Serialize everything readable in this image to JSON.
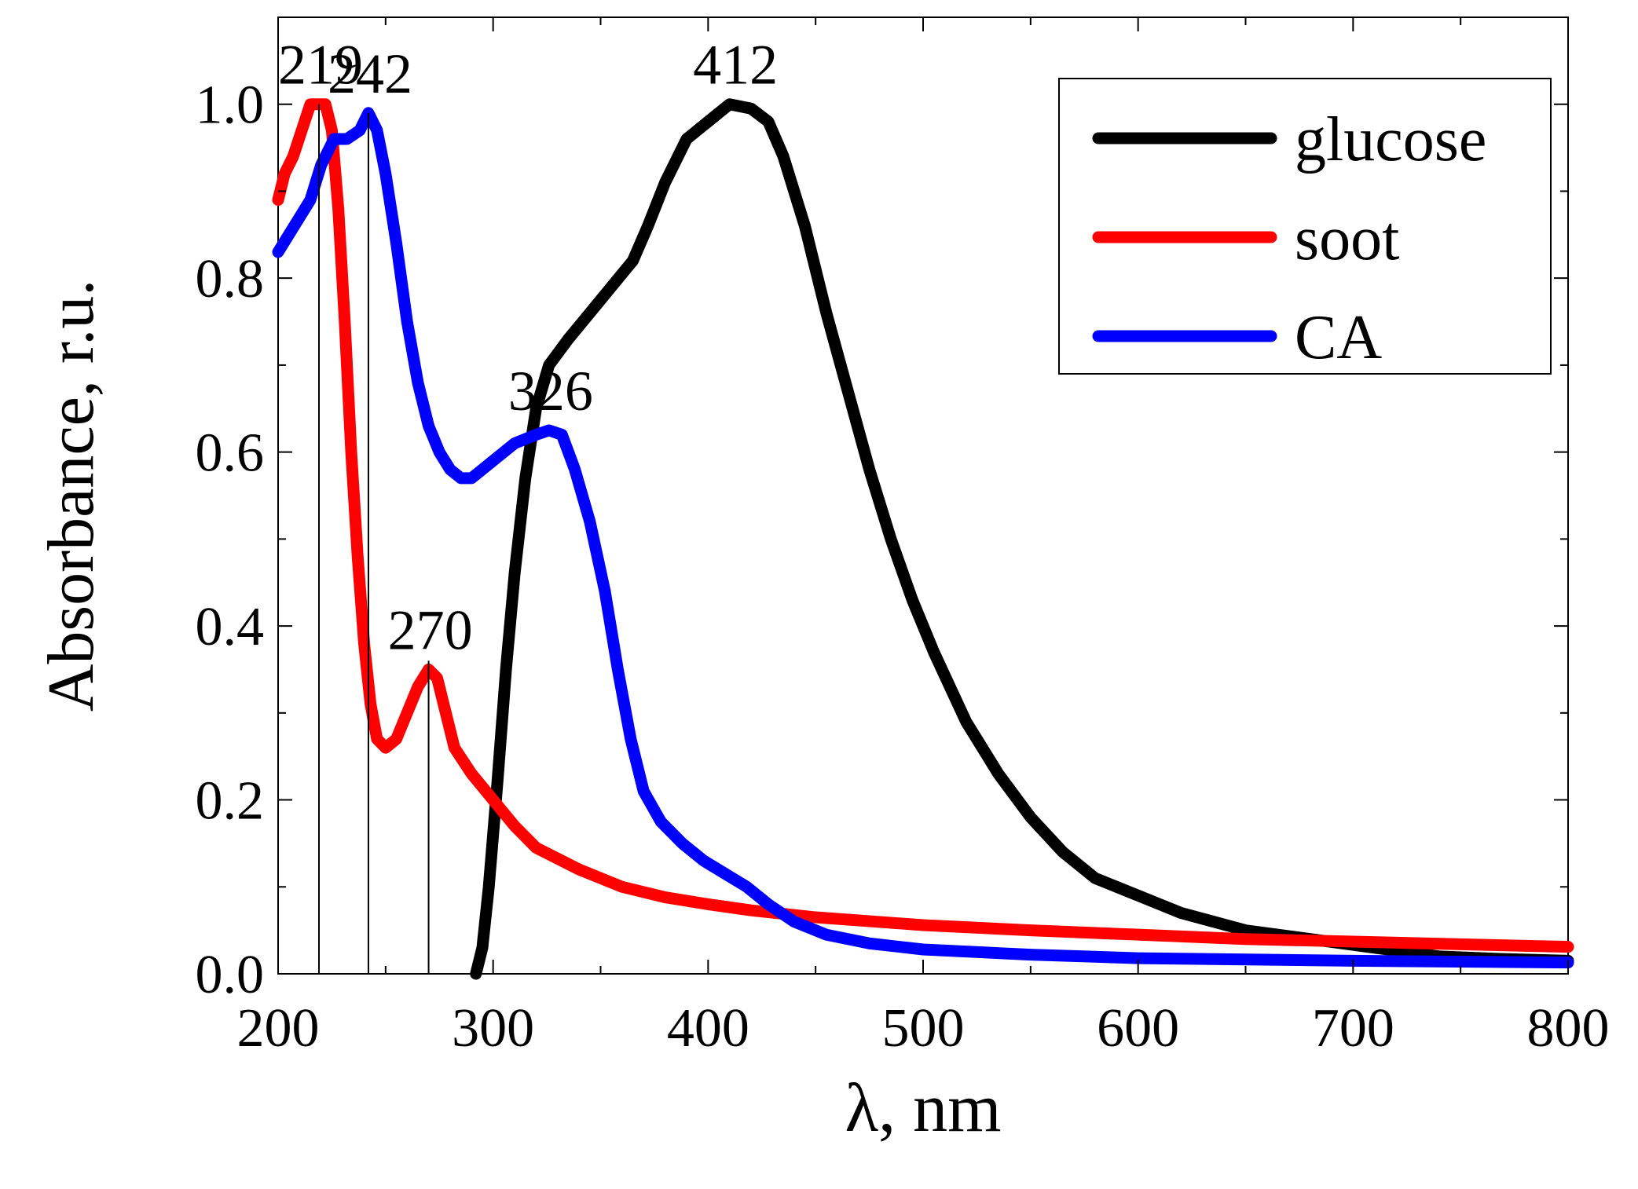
{
  "chart_data": {
    "type": "line",
    "title": "",
    "xlabel": "λ, nm",
    "ylabel": "Absorbance, r.u.",
    "xlim": [
      200,
      800
    ],
    "ylim": [
      0,
      1.1
    ],
    "x_ticks": [
      200,
      300,
      400,
      500,
      600,
      700,
      800
    ],
    "x_tick_labels": [
      "200",
      "300",
      "400",
      "500",
      "600",
      "700",
      "800"
    ],
    "y_ticks": [
      0.0,
      0.2,
      0.4,
      0.6,
      0.8,
      1.0
    ],
    "y_tick_labels": [
      "0.0",
      "0.2",
      "0.4",
      "0.6",
      "0.8",
      "1.0"
    ],
    "grid": false,
    "legend_position": "top-right",
    "series": [
      {
        "name": "glucose",
        "color": "#000000",
        "points": [
          [
            292,
            0.0
          ],
          [
            295,
            0.03
          ],
          [
            298,
            0.1
          ],
          [
            302,
            0.22
          ],
          [
            306,
            0.35
          ],
          [
            310,
            0.46
          ],
          [
            315,
            0.57
          ],
          [
            320,
            0.65
          ],
          [
            326,
            0.7
          ],
          [
            335,
            0.73
          ],
          [
            345,
            0.76
          ],
          [
            355,
            0.79
          ],
          [
            365,
            0.82
          ],
          [
            372,
            0.86
          ],
          [
            380,
            0.91
          ],
          [
            390,
            0.96
          ],
          [
            400,
            0.98
          ],
          [
            410,
            1.0
          ],
          [
            420,
            0.995
          ],
          [
            428,
            0.98
          ],
          [
            435,
            0.94
          ],
          [
            445,
            0.86
          ],
          [
            455,
            0.76
          ],
          [
            465,
            0.67
          ],
          [
            475,
            0.58
          ],
          [
            485,
            0.5
          ],
          [
            495,
            0.43
          ],
          [
            505,
            0.37
          ],
          [
            520,
            0.29
          ],
          [
            535,
            0.23
          ],
          [
            550,
            0.18
          ],
          [
            565,
            0.14
          ],
          [
            580,
            0.11
          ],
          [
            600,
            0.09
          ],
          [
            620,
            0.07
          ],
          [
            650,
            0.05
          ],
          [
            680,
            0.04
          ],
          [
            710,
            0.03
          ],
          [
            740,
            0.02
          ],
          [
            770,
            0.017
          ],
          [
            800,
            0.015
          ]
        ]
      },
      {
        "name": "soot",
        "color": "#ff0000",
        "points": [
          [
            200,
            0.89
          ],
          [
            203,
            0.92
          ],
          [
            207,
            0.94
          ],
          [
            211,
            0.97
          ],
          [
            215,
            1.0
          ],
          [
            219,
            1.0
          ],
          [
            222,
            1.0
          ],
          [
            225,
            0.97
          ],
          [
            228,
            0.88
          ],
          [
            231,
            0.75
          ],
          [
            234,
            0.6
          ],
          [
            237,
            0.48
          ],
          [
            240,
            0.38
          ],
          [
            243,
            0.31
          ],
          [
            246,
            0.27
          ],
          [
            250,
            0.26
          ],
          [
            255,
            0.27
          ],
          [
            260,
            0.3
          ],
          [
            265,
            0.33
          ],
          [
            270,
            0.35
          ],
          [
            274,
            0.34
          ],
          [
            278,
            0.3
          ],
          [
            282,
            0.26
          ],
          [
            290,
            0.23
          ],
          [
            300,
            0.2
          ],
          [
            310,
            0.17
          ],
          [
            320,
            0.145
          ],
          [
            340,
            0.12
          ],
          [
            360,
            0.1
          ],
          [
            380,
            0.088
          ],
          [
            400,
            0.08
          ],
          [
            420,
            0.073
          ],
          [
            450,
            0.065
          ],
          [
            500,
            0.056
          ],
          [
            550,
            0.05
          ],
          [
            600,
            0.045
          ],
          [
            650,
            0.04
          ],
          [
            700,
            0.037
          ],
          [
            750,
            0.034
          ],
          [
            800,
            0.031
          ]
        ]
      },
      {
        "name": "CA",
        "color": "#0000ff",
        "points": [
          [
            200,
            0.83
          ],
          [
            205,
            0.85
          ],
          [
            210,
            0.87
          ],
          [
            215,
            0.89
          ],
          [
            220,
            0.93
          ],
          [
            226,
            0.96
          ],
          [
            232,
            0.96
          ],
          [
            238,
            0.97
          ],
          [
            242,
            0.99
          ],
          [
            246,
            0.97
          ],
          [
            250,
            0.92
          ],
          [
            255,
            0.84
          ],
          [
            260,
            0.75
          ],
          [
            265,
            0.68
          ],
          [
            270,
            0.63
          ],
          [
            275,
            0.6
          ],
          [
            280,
            0.58
          ],
          [
            285,
            0.57
          ],
          [
            290,
            0.57
          ],
          [
            295,
            0.58
          ],
          [
            300,
            0.59
          ],
          [
            310,
            0.61
          ],
          [
            320,
            0.62
          ],
          [
            326,
            0.625
          ],
          [
            332,
            0.62
          ],
          [
            338,
            0.58
          ],
          [
            345,
            0.52
          ],
          [
            352,
            0.44
          ],
          [
            358,
            0.35
          ],
          [
            364,
            0.27
          ],
          [
            370,
            0.21
          ],
          [
            378,
            0.175
          ],
          [
            388,
            0.15
          ],
          [
            398,
            0.13
          ],
          [
            408,
            0.115
          ],
          [
            418,
            0.1
          ],
          [
            428,
            0.08
          ],
          [
            440,
            0.06
          ],
          [
            455,
            0.045
          ],
          [
            475,
            0.035
          ],
          [
            500,
            0.028
          ],
          [
            550,
            0.022
          ],
          [
            600,
            0.018
          ],
          [
            700,
            0.015
          ],
          [
            800,
            0.013
          ]
        ]
      }
    ],
    "annotations": [
      {
        "text": "219",
        "x": 219,
        "series": "soot",
        "line_top": 1.0
      },
      {
        "text": "242",
        "x": 242,
        "series": "CA",
        "line_top": 0.99
      },
      {
        "text": "270",
        "x": 270,
        "series": "soot",
        "line_top": 0.36
      },
      {
        "text": "326",
        "x": 326,
        "series": "CA",
        "line_top": null
      },
      {
        "text": "412",
        "x": 412,
        "series": "glucose",
        "line_top": null
      }
    ]
  }
}
